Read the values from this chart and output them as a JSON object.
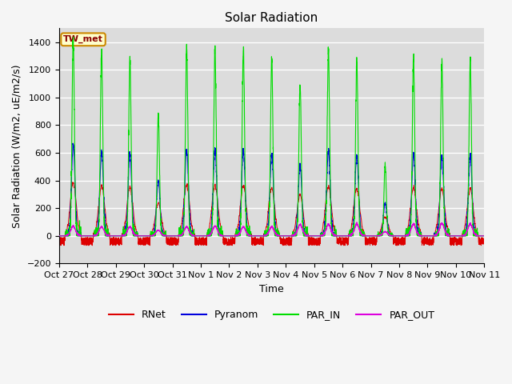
{
  "title": "Solar Radiation",
  "ylabel": "Solar Radiation (W/m2, uE/m2/s)",
  "xlabel": "Time",
  "ylim": [
    -200,
    1500
  ],
  "yticks": [
    -200,
    0,
    200,
    400,
    600,
    800,
    1000,
    1200,
    1400
  ],
  "xlim": [
    0,
    15
  ],
  "xtick_labels": [
    "Oct 27",
    "Oct 28",
    "Oct 29",
    "Oct 30",
    "Oct 31",
    "Nov 1",
    "Nov 2",
    "Nov 3",
    "Nov 4",
    "Nov 5",
    "Nov 6",
    "Nov 7",
    "Nov 8",
    "Nov 9",
    "Nov 10",
    "Nov 11"
  ],
  "xtick_positions": [
    0,
    1,
    2,
    3,
    4,
    5,
    6,
    7,
    8,
    9,
    10,
    11,
    12,
    13,
    14,
    15
  ],
  "station_label": "TW_met",
  "colors": {
    "RNet": "#dd0000",
    "Pyranom": "#0000dd",
    "PAR_IN": "#00dd00",
    "PAR_OUT": "#dd00dd"
  },
  "background_color": "#dcdcdc",
  "par_in_peaks": [
    1420,
    1330,
    1290,
    870,
    1360,
    1360,
    1350,
    1280,
    1100,
    1330,
    1265,
    510,
    1280,
    1265,
    1265
  ],
  "pyranom_scale": 0.46,
  "rnet_scale": 0.27,
  "par_out_peaks": [
    70,
    65,
    65,
    40,
    65,
    70,
    65,
    65,
    80,
    80,
    85,
    30,
    85,
    90,
    85
  ],
  "title_fontsize": 11,
  "tick_fontsize": 8,
  "label_fontsize": 9
}
